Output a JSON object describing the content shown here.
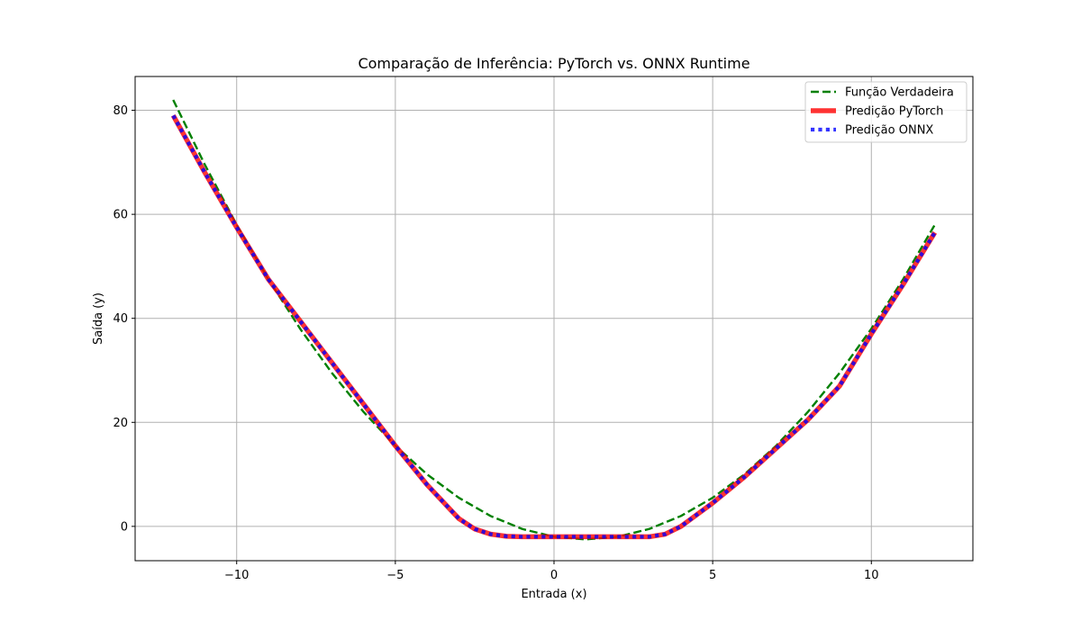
{
  "chart_data": {
    "type": "line",
    "title": "Comparação de Inferência: PyTorch vs. ONNX Runtime",
    "xlabel": "Entrada (x)",
    "ylabel": "Saída (y)",
    "xlim": [
      -13.2,
      13.2
    ],
    "ylim": [
      -6.6,
      86.5
    ],
    "xticks": [
      -10,
      -5,
      0,
      5,
      10
    ],
    "xtick_labels": [
      "−10",
      "−5",
      "0",
      "5",
      "10"
    ],
    "yticks": [
      0,
      20,
      40,
      60,
      80
    ],
    "ytick_labels": [
      "0",
      "20",
      "40",
      "60",
      "80"
    ],
    "grid": true,
    "legend_position": "top-right",
    "series": [
      {
        "name": "Função Verdadeira",
        "color": "#008000",
        "style": "dashed",
        "x": [
          -12,
          -11,
          -10,
          -9,
          -8,
          -7,
          -6,
          -5,
          -4,
          -3,
          -2,
          -1,
          0,
          1,
          2,
          3,
          4,
          5,
          6,
          7,
          8,
          9,
          10,
          11,
          12
        ],
        "y": [
          82,
          69.5,
          58,
          47.5,
          38,
          29.5,
          22,
          15.5,
          10,
          5.5,
          2,
          -0.5,
          -2,
          -2.5,
          -2,
          -0.5,
          2,
          5.5,
          10,
          15.5,
          22,
          29.5,
          38,
          47.5,
          58
        ]
      },
      {
        "name": "Predição PyTorch",
        "color": "#ff0000",
        "style": "solid",
        "x": [
          -12,
          -11,
          -10,
          -9,
          -8,
          -7,
          -6,
          -5,
          -4,
          -3,
          -2.5,
          -2,
          -1.5,
          -1,
          0,
          1,
          2,
          3,
          3.5,
          4,
          5,
          6,
          7,
          8,
          9,
          10,
          11,
          12
        ],
        "y": [
          79,
          68,
          57.5,
          47.5,
          39.5,
          31.5,
          23.5,
          15.5,
          8,
          1.5,
          -0.5,
          -1.5,
          -1.9,
          -2,
          -2,
          -2,
          -2,
          -2,
          -1.5,
          0,
          4.5,
          9.5,
          15,
          20.5,
          27,
          37,
          46.5,
          56.5
        ]
      },
      {
        "name": "Predição ONNX",
        "color": "#0000ff",
        "style": "dotted",
        "x": [
          -12,
          -11,
          -10,
          -9,
          -8,
          -7,
          -6,
          -5,
          -4,
          -3,
          -2.5,
          -2,
          -1.5,
          -1,
          0,
          1,
          2,
          3,
          3.5,
          4,
          5,
          6,
          7,
          8,
          9,
          10,
          11,
          12
        ],
        "y": [
          79,
          68,
          57.5,
          47.5,
          39.5,
          31.5,
          23.5,
          15.5,
          8,
          1.5,
          -0.5,
          -1.5,
          -1.9,
          -2,
          -2,
          -2,
          -2,
          -2,
          -1.5,
          0,
          4.5,
          9.5,
          15,
          20.5,
          27,
          37,
          46.5,
          56.5
        ]
      }
    ]
  }
}
